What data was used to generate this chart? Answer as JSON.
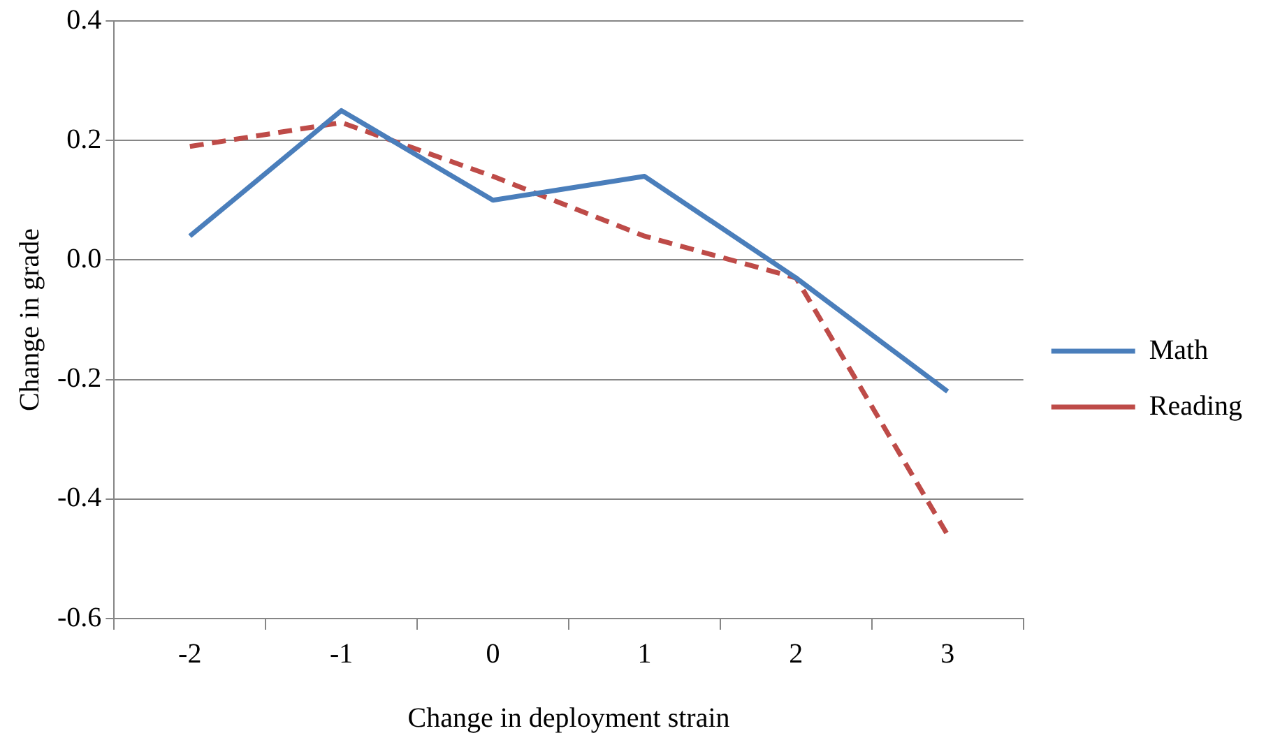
{
  "chart_data": {
    "type": "line",
    "xlabel": "Change in deployment strain",
    "ylabel": "Change in grade",
    "categories": [
      "-2",
      "-1",
      "0",
      "1",
      "2",
      "3"
    ],
    "series": [
      {
        "name": "Math",
        "color": "#4a7ebb",
        "line_style": "solid",
        "values": [
          0.04,
          0.25,
          0.1,
          0.14,
          -0.03,
          -0.22
        ]
      },
      {
        "name": "Reading",
        "color": "#be4b48",
        "line_style": "dashed",
        "values": [
          0.19,
          0.23,
          0.14,
          0.04,
          -0.03,
          -0.46
        ]
      }
    ],
    "ylim": [
      -0.6,
      0.4
    ],
    "yticks": [
      {
        "value": -0.6,
        "label": "-0.6"
      },
      {
        "value": -0.4,
        "label": "-0.4"
      },
      {
        "value": -0.2,
        "label": "-0.2"
      },
      {
        "value": 0,
        "label": "0.0"
      },
      {
        "value": 0.2,
        "label": "0.2"
      },
      {
        "value": 0.4,
        "label": "0.4"
      }
    ],
    "grid": "y",
    "legend": "right",
    "marker": "none"
  }
}
